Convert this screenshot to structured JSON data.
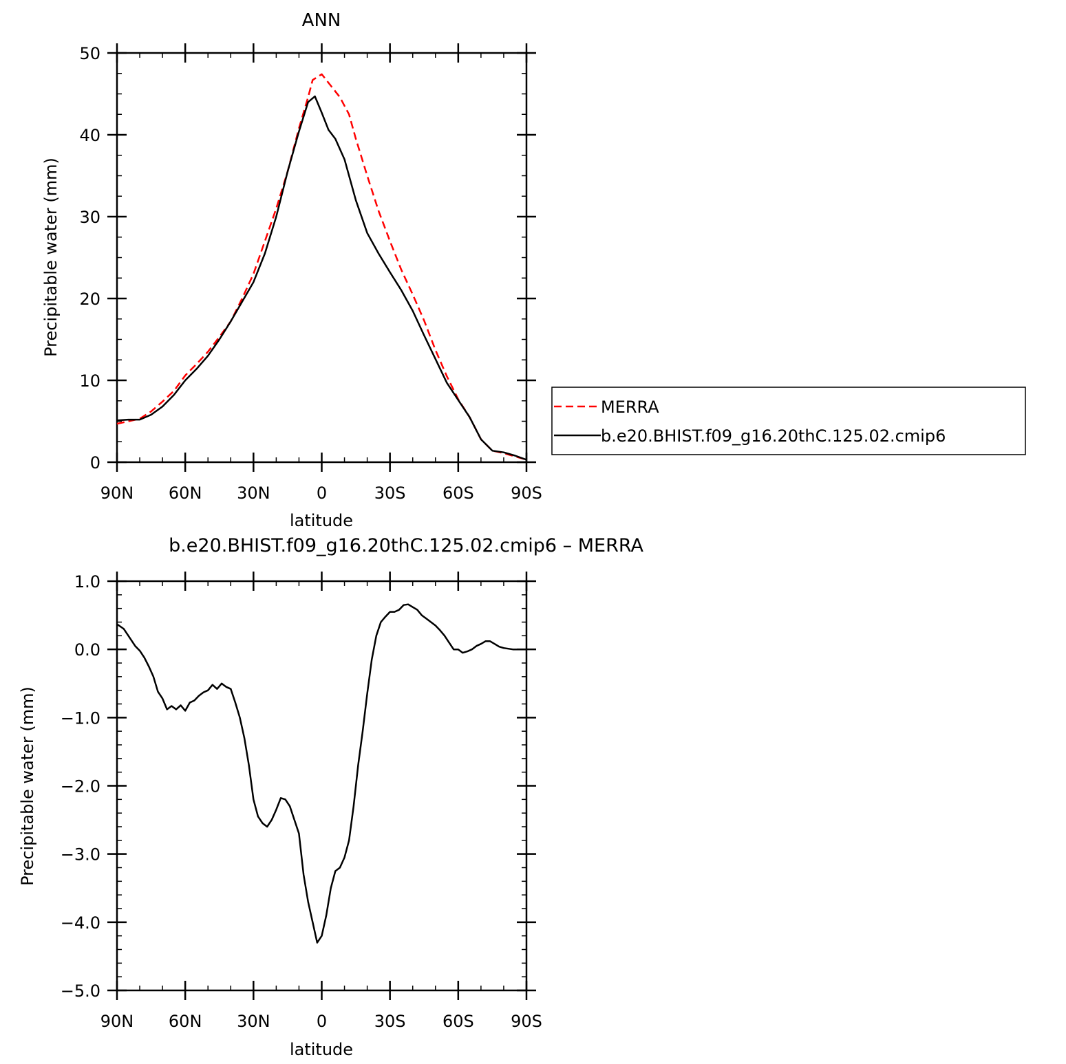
{
  "chart_data": [
    {
      "type": "line",
      "title": "ANN",
      "xlabel": "latitude",
      "ylabel": "Precipitable water (mm)",
      "xlim": [
        90,
        -90
      ],
      "ylim": [
        0,
        50
      ],
      "x_tick_values": [
        90,
        60,
        30,
        0,
        -30,
        -60,
        -90
      ],
      "x_tick_labels": [
        "90N",
        "60N",
        "30N",
        "0",
        "30S",
        "60S",
        "90S"
      ],
      "y_tick_values": [
        0,
        10,
        20,
        30,
        40,
        50
      ],
      "y_tick_labels": [
        "0",
        "10",
        "20",
        "30",
        "40",
        "50"
      ],
      "grid": false,
      "legend_placement": "right, outside",
      "series": [
        {
          "name": "MERRA",
          "color": "#ff0000",
          "dash": "dashed",
          "x": [
            90,
            85,
            80,
            75,
            70,
            65,
            60,
            55,
            50,
            45,
            40,
            35,
            30,
            25,
            20,
            15,
            10,
            6,
            4,
            0,
            -4,
            -8,
            -12,
            -15,
            -20,
            -25,
            -30,
            -35,
            -40,
            -45,
            -50,
            -55,
            -60,
            -65,
            -70,
            -75,
            -80,
            -85,
            -90
          ],
          "values": [
            4.7,
            5.0,
            5.3,
            6.2,
            7.4,
            8.7,
            10.6,
            12.0,
            13.5,
            15.3,
            17.2,
            20.0,
            23.0,
            27.0,
            31.0,
            35.5,
            40.8,
            44.6,
            46.7,
            47.4,
            46.0,
            44.6,
            42.5,
            39.5,
            35.0,
            30.7,
            27.0,
            23.5,
            20.5,
            17.3,
            13.7,
            10.5,
            7.7,
            5.5,
            2.8,
            1.4,
            1.1,
            0.7,
            0.3
          ]
        },
        {
          "name": "b.e20.BHIST.f09_g16.20thC.125.02.cmip6",
          "color": "#000000",
          "dash": "solid",
          "x": [
            90,
            85,
            80,
            75,
            70,
            65,
            60,
            55,
            50,
            45,
            40,
            35,
            30,
            25,
            20,
            15,
            10,
            6,
            3,
            0,
            -3,
            -6,
            -10,
            -15,
            -20,
            -25,
            -30,
            -35,
            -40,
            -45,
            -50,
            -55,
            -60,
            -65,
            -70,
            -75,
            -80,
            -85,
            -90
          ],
          "values": [
            5.1,
            5.2,
            5.2,
            5.8,
            6.8,
            8.2,
            10.0,
            11.4,
            13.0,
            15.0,
            17.2,
            19.6,
            22.0,
            25.5,
            30.0,
            35.5,
            40.4,
            44.0,
            44.7,
            42.7,
            40.6,
            39.5,
            37.0,
            32.0,
            28.0,
            25.5,
            23.2,
            21.0,
            18.5,
            15.5,
            12.6,
            9.7,
            7.6,
            5.5,
            2.8,
            1.4,
            1.2,
            0.8,
            0.3
          ]
        }
      ]
    },
    {
      "type": "line",
      "title": "b.e20.BHIST.f09_g16.20thC.125.02.cmip6 – MERRA",
      "xlabel": "latitude",
      "ylabel": "Precipitable water (mm)",
      "xlim": [
        90,
        -90
      ],
      "ylim": [
        -5.0,
        1.0
      ],
      "x_tick_values": [
        90,
        60,
        30,
        0,
        -30,
        -60,
        -90
      ],
      "x_tick_labels": [
        "90N",
        "60N",
        "30N",
        "0",
        "30S",
        "60S",
        "90S"
      ],
      "y_tick_values": [
        1.0,
        0.0,
        -1.0,
        -2.0,
        -3.0,
        -4.0,
        -5.0
      ],
      "y_tick_labels": [
        "1.0",
        "0.0",
        "−1.0",
        "−2.0",
        "−3.0",
        "−4.0",
        "−5.0"
      ],
      "grid": false,
      "series": [
        {
          "color": "#000000",
          "dash": "solid",
          "x": [
            90,
            87,
            85,
            82,
            80,
            78,
            76,
            74,
            72,
            70,
            68,
            66,
            64,
            62,
            60,
            58,
            56,
            54,
            52,
            50,
            48,
            46,
            44,
            42,
            40,
            38,
            36,
            34,
            32,
            30,
            28,
            26,
            24,
            22,
            20,
            18,
            16,
            14,
            12,
            10,
            8,
            6,
            4,
            2,
            0,
            -2,
            -4,
            -6,
            -8,
            -10,
            -12,
            -14,
            -16,
            -18,
            -20,
            -22,
            -24,
            -26,
            -28,
            -30,
            -32,
            -34,
            -36,
            -38,
            -40,
            -42,
            -44,
            -46,
            -48,
            -50,
            -52,
            -54,
            -56,
            -58,
            -60,
            -62,
            -64,
            -66,
            -68,
            -70,
            -72,
            -74,
            -76,
            -78,
            -80,
            -82,
            -84,
            -86,
            -88,
            -90
          ],
          "values": [
            0.37,
            0.3,
            0.2,
            0.05,
            -0.02,
            -0.12,
            -0.25,
            -0.4,
            -0.62,
            -0.72,
            -0.88,
            -0.83,
            -0.88,
            -0.82,
            -0.9,
            -0.78,
            -0.75,
            -0.68,
            -0.63,
            -0.6,
            -0.52,
            -0.58,
            -0.5,
            -0.55,
            -0.58,
            -0.78,
            -1.0,
            -1.3,
            -1.7,
            -2.2,
            -2.45,
            -2.55,
            -2.6,
            -2.5,
            -2.35,
            -2.18,
            -2.2,
            -2.3,
            -2.5,
            -2.7,
            -3.3,
            -3.7,
            -4.0,
            -4.3,
            -4.2,
            -3.9,
            -3.5,
            -3.25,
            -3.2,
            -3.05,
            -2.8,
            -2.3,
            -1.7,
            -1.2,
            -0.65,
            -0.15,
            0.2,
            0.4,
            0.48,
            0.55,
            0.55,
            0.58,
            0.65,
            0.66,
            0.62,
            0.58,
            0.5,
            0.45,
            0.4,
            0.35,
            0.28,
            0.2,
            0.1,
            0.0,
            0.0,
            -0.05,
            -0.03,
            0.0,
            0.05,
            0.08,
            0.12,
            0.12,
            0.08,
            0.04,
            0.02,
            0.01,
            0.0,
            0.0,
            0.0,
            0.0
          ]
        }
      ]
    }
  ]
}
